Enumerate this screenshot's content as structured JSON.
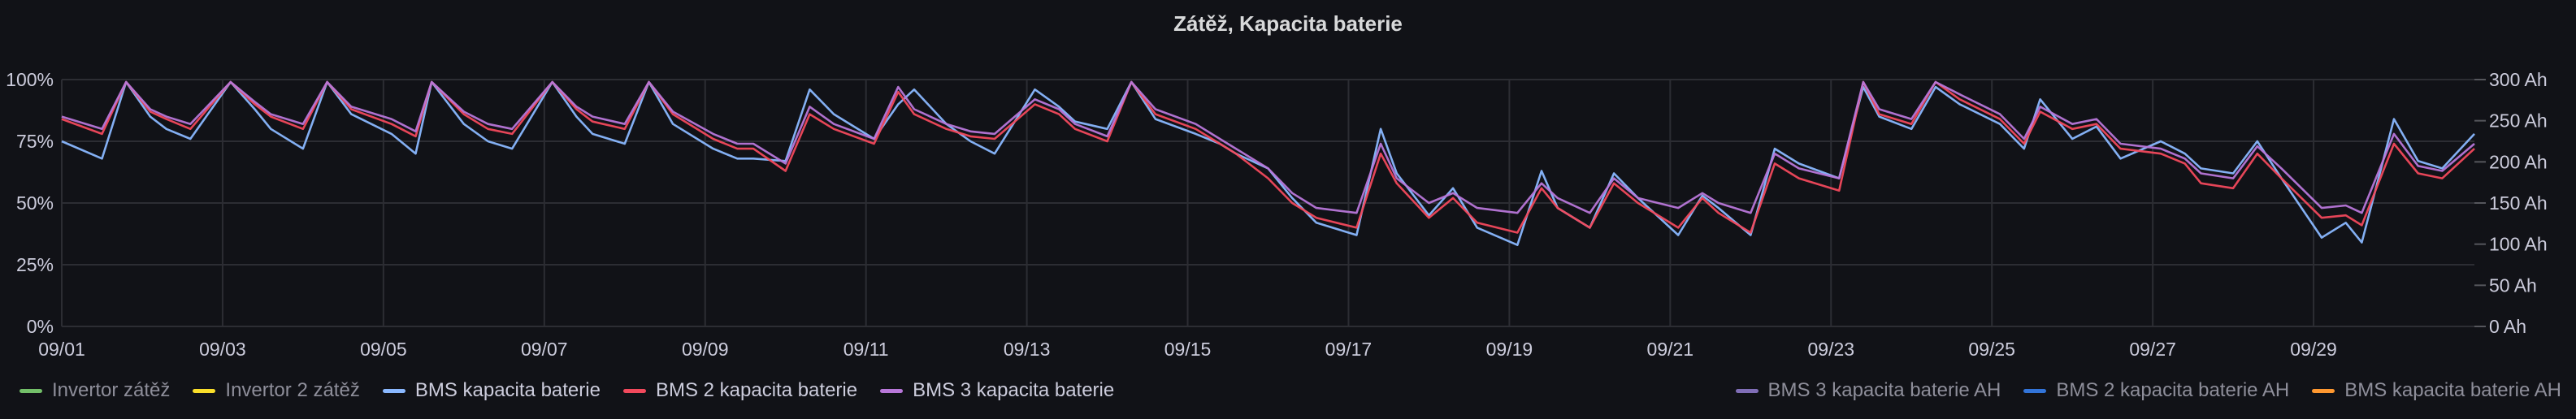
{
  "panel": {
    "title": "Zátěž, Kapacita baterie"
  },
  "chart_data": {
    "type": "line",
    "title": "Zátěž, Kapacita baterie",
    "x_range": [
      "09/01",
      "09/30"
    ],
    "x_ticks": [
      "09/01",
      "09/03",
      "09/05",
      "09/07",
      "09/09",
      "09/11",
      "09/13",
      "09/15",
      "09/17",
      "09/19",
      "09/21",
      "09/23",
      "09/25",
      "09/27",
      "09/29"
    ],
    "y_left": {
      "ticks": [
        "0%",
        "25%",
        "50%",
        "75%",
        "100%"
      ],
      "range": [
        0,
        100
      ]
    },
    "y_right": {
      "ticks": [
        "0 Ah",
        "50 Ah",
        "100 Ah",
        "150 Ah",
        "200 Ah",
        "250 Ah",
        "300 Ah"
      ],
      "range": [
        0,
        300
      ]
    },
    "grid": true,
    "legend_left": [
      {
        "name": "Invertor zátěž",
        "color": "#73bf69"
      },
      {
        "name": "Invertor 2 zátěž",
        "color": "#fade2a"
      },
      {
        "name": "BMS kapacita baterie",
        "color": "#8ab8ff"
      },
      {
        "name": "BMS 2 kapacita baterie",
        "color": "#f2495c"
      },
      {
        "name": "BMS 3 kapacita baterie",
        "color": "#b877d9"
      }
    ],
    "legend_right": [
      {
        "name": "BMS 3 kapacita baterie AH",
        "color": "#806eb7"
      },
      {
        "name": "BMS 2 kapacita baterie AH",
        "color": "#3274d9"
      },
      {
        "name": "BMS kapacita baterie AH",
        "color": "#ff9830"
      }
    ],
    "series": [
      {
        "name": "BMS kapacita baterie",
        "color": "#8ab8ff",
        "x": [
          0,
          0.5,
          0.8,
          1.1,
          1.3,
          1.6,
          2.1,
          2.4,
          2.6,
          3.0,
          3.3,
          3.6,
          4.1,
          4.4,
          4.6,
          5.0,
          5.3,
          5.6,
          6.1,
          6.4,
          6.6,
          7.0,
          7.3,
          7.6,
          8.1,
          8.4,
          8.6,
          9.0,
          9.3,
          9.6,
          10.1,
          10.4,
          10.6,
          11.0,
          11.3,
          11.6,
          12.1,
          12.4,
          12.6,
          13.0,
          13.3,
          13.6,
          14.1,
          14.4,
          14.6,
          15.0,
          15.3,
          15.6,
          16.1,
          16.4,
          16.6,
          17.0,
          17.3,
          17.6,
          18.1,
          18.4,
          18.6,
          19.0,
          19.3,
          19.6,
          20.1,
          20.4,
          20.6,
          21.0,
          21.3,
          21.6,
          22.1,
          22.4,
          22.6,
          23.0,
          23.3,
          23.6,
          24.1,
          24.4,
          24.6,
          25.0,
          25.3,
          25.6,
          26.1,
          26.4,
          26.6,
          27.0,
          27.3,
          27.6,
          28.1,
          28.4,
          28.6,
          29.0,
          29.3,
          29.6,
          30.0
        ],
        "values": [
          75,
          68,
          99,
          85,
          80,
          76,
          99,
          88,
          80,
          72,
          99,
          86,
          78,
          70,
          99,
          82,
          75,
          72,
          99,
          85,
          78,
          74,
          99,
          82,
          72,
          68,
          68,
          67,
          96,
          86,
          76,
          90,
          96,
          82,
          75,
          70,
          96,
          89,
          83,
          80,
          99,
          84,
          78,
          74,
          70,
          64,
          52,
          42,
          37,
          80,
          62,
          45,
          56,
          40,
          33,
          63,
          48,
          40,
          62,
          52,
          37,
          53,
          48,
          37,
          72,
          66,
          60,
          97,
          85,
          80,
          97,
          90,
          82,
          72,
          92,
          76,
          81,
          68,
          75,
          70,
          64,
          62,
          75,
          60,
          36,
          42,
          34,
          84,
          67,
          64,
          78
        ]
      },
      {
        "name": "BMS 2 kapacita baterie",
        "color": "#f2495c",
        "x": [
          0,
          0.5,
          0.8,
          1.1,
          1.3,
          1.6,
          2.1,
          2.4,
          2.6,
          3.0,
          3.3,
          3.6,
          4.1,
          4.4,
          4.6,
          5.0,
          5.3,
          5.6,
          6.1,
          6.4,
          6.6,
          7.0,
          7.3,
          7.6,
          8.1,
          8.4,
          8.6,
          9.0,
          9.3,
          9.6,
          10.1,
          10.4,
          10.6,
          11.0,
          11.3,
          11.6,
          12.1,
          12.4,
          12.6,
          13.0,
          13.3,
          13.6,
          14.1,
          14.4,
          14.6,
          15.0,
          15.3,
          15.6,
          16.1,
          16.4,
          16.6,
          17.0,
          17.3,
          17.6,
          18.1,
          18.4,
          18.6,
          19.0,
          19.3,
          19.6,
          20.1,
          20.4,
          20.6,
          21.0,
          21.3,
          21.6,
          22.1,
          22.4,
          22.6,
          23.0,
          23.3,
          23.6,
          24.1,
          24.4,
          24.6,
          25.0,
          25.3,
          25.6,
          26.1,
          26.4,
          26.6,
          27.0,
          27.3,
          27.6,
          28.1,
          28.4,
          28.6,
          29.0,
          29.3,
          29.6,
          30.0
        ],
        "values": [
          84,
          78,
          99,
          87,
          84,
          80,
          99,
          90,
          85,
          80,
          99,
          88,
          82,
          77,
          99,
          86,
          80,
          78,
          99,
          88,
          83,
          80,
          99,
          86,
          76,
          72,
          72,
          63,
          86,
          80,
          74,
          95,
          86,
          80,
          77,
          76,
          90,
          86,
          80,
          75,
          99,
          86,
          80,
          74,
          70,
          60,
          50,
          44,
          40,
          70,
          58,
          44,
          52,
          42,
          38,
          56,
          48,
          40,
          58,
          50,
          40,
          52,
          46,
          38,
          66,
          60,
          55,
          99,
          86,
          82,
          99,
          92,
          84,
          74,
          87,
          80,
          82,
          72,
          70,
          66,
          58,
          56,
          70,
          60,
          44,
          45,
          41,
          74,
          62,
          60,
          72
        ]
      },
      {
        "name": "BMS 3 kapacita baterie",
        "color": "#b877d9",
        "x": [
          0,
          0.5,
          0.8,
          1.1,
          1.3,
          1.6,
          2.1,
          2.4,
          2.6,
          3.0,
          3.3,
          3.6,
          4.1,
          4.4,
          4.6,
          5.0,
          5.3,
          5.6,
          6.1,
          6.4,
          6.6,
          7.0,
          7.3,
          7.6,
          8.1,
          8.4,
          8.6,
          9.0,
          9.3,
          9.6,
          10.1,
          10.4,
          10.6,
          11.0,
          11.3,
          11.6,
          12.1,
          12.4,
          12.6,
          13.0,
          13.3,
          13.6,
          14.1,
          14.4,
          14.6,
          15.0,
          15.3,
          15.6,
          16.1,
          16.4,
          16.6,
          17.0,
          17.3,
          17.6,
          18.1,
          18.4,
          18.6,
          19.0,
          19.3,
          19.6,
          20.1,
          20.4,
          20.6,
          21.0,
          21.3,
          21.6,
          22.1,
          22.4,
          22.6,
          23.0,
          23.3,
          23.6,
          24.1,
          24.4,
          24.6,
          25.0,
          25.3,
          25.6,
          26.1,
          26.4,
          26.6,
          27.0,
          27.3,
          27.6,
          28.1,
          28.4,
          28.6,
          29.0,
          29.3,
          29.6,
          30.0
        ],
        "values": [
          85,
          80,
          99,
          88,
          85,
          82,
          99,
          91,
          86,
          82,
          99,
          89,
          84,
          79,
          99,
          87,
          82,
          80,
          99,
          89,
          85,
          82,
          99,
          87,
          78,
          74,
          74,
          66,
          89,
          82,
          76,
          97,
          88,
          82,
          79,
          78,
          92,
          88,
          82,
          77,
          99,
          88,
          82,
          76,
          72,
          64,
          54,
          48,
          46,
          74,
          60,
          50,
          54,
          48,
          46,
          58,
          52,
          46,
          60,
          52,
          48,
          54,
          50,
          46,
          70,
          64,
          60,
          99,
          88,
          84,
          99,
          94,
          86,
          76,
          89,
          82,
          84,
          74,
          72,
          68,
          62,
          60,
          73,
          64,
          48,
          49,
          46,
          78,
          65,
          63,
          74
        ]
      }
    ]
  }
}
